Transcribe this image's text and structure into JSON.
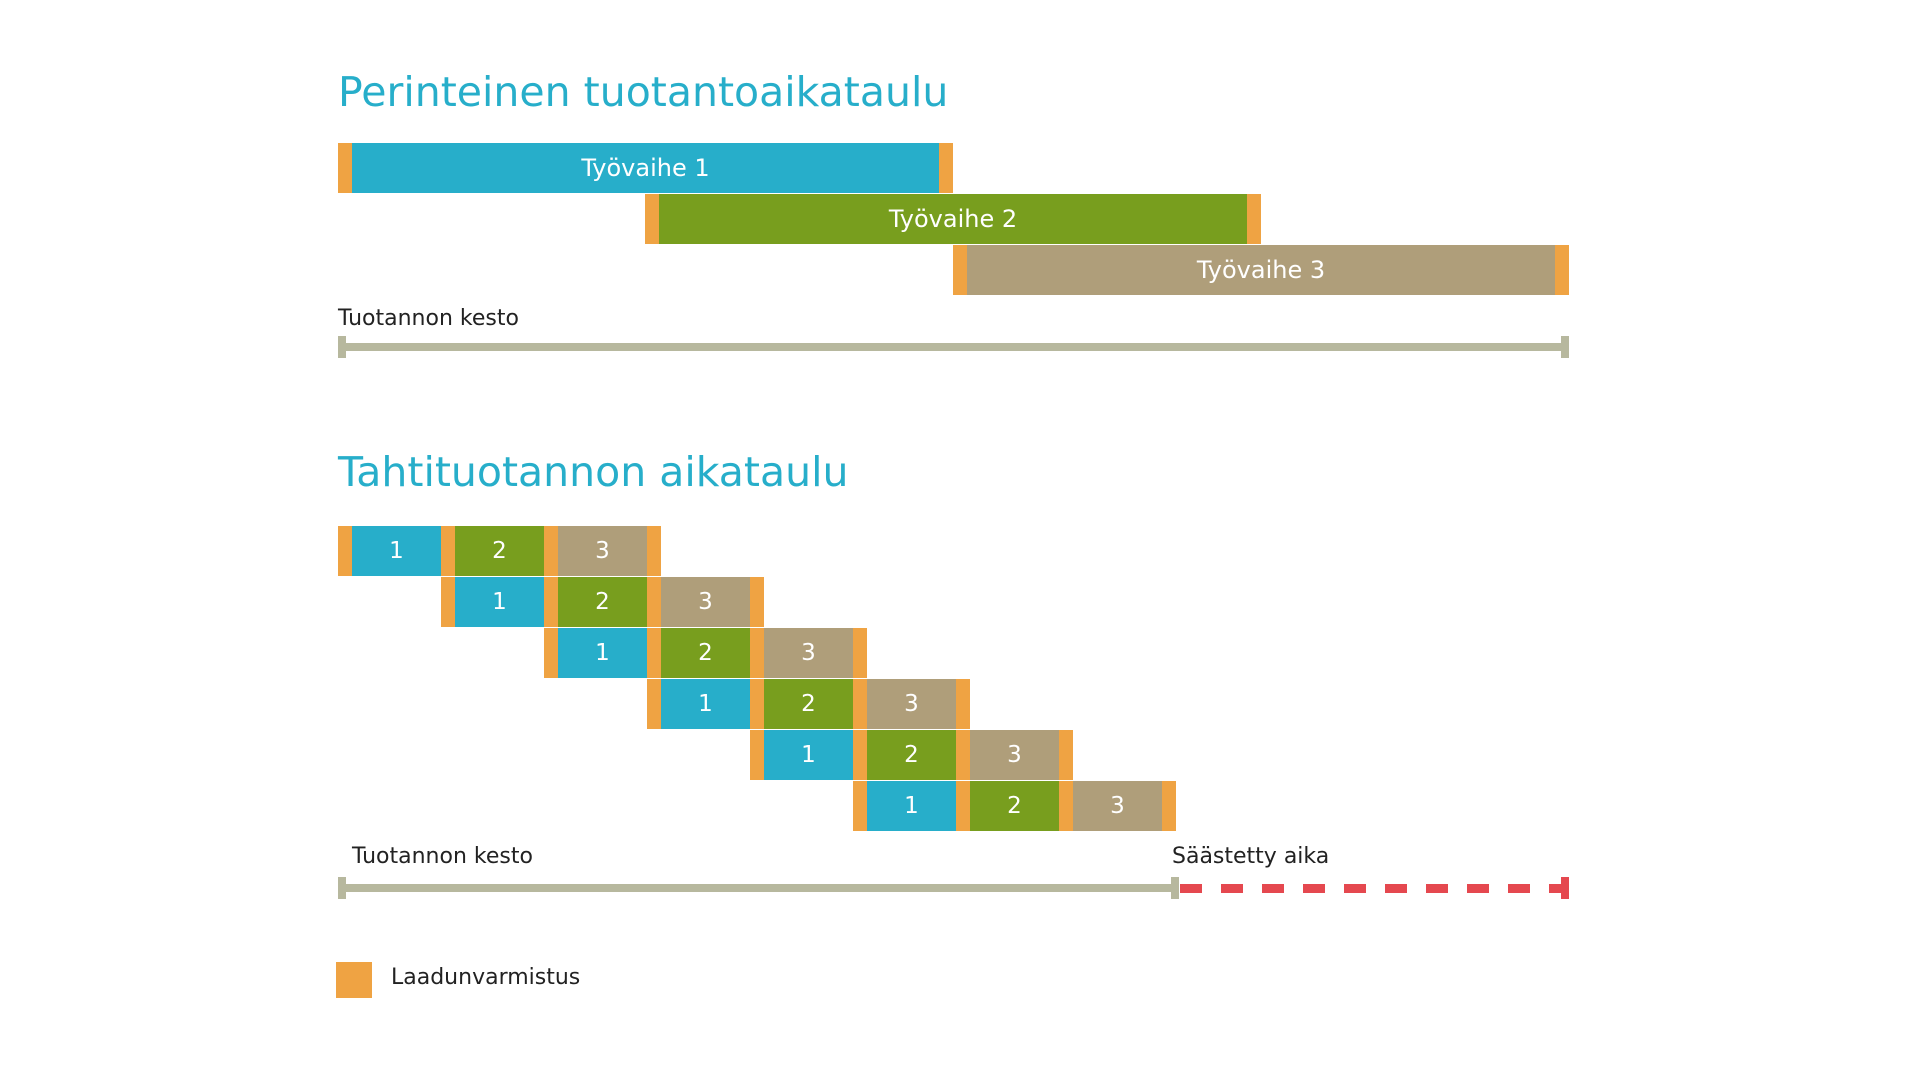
{
  "traditional": {
    "title": "Perinteinen tuotantoaikataulu",
    "phases": [
      {
        "label": "Työvaihe 1",
        "color": "#27AECA"
      },
      {
        "label": "Työvaihe 2",
        "color": "#789E1E"
      },
      {
        "label": "Työvaihe 3",
        "color": "#AF9E7A"
      }
    ],
    "duration_label": "Tuotannon kesto"
  },
  "takt": {
    "title": "Tahtituotannon aikataulu",
    "rows": 6,
    "cell_labels": [
      "1",
      "2",
      "3"
    ],
    "duration_label": "Tuotannon kesto",
    "saved_label": "Säästetty aika"
  },
  "legend": {
    "label": "Laadunvarmistus",
    "color": "#EFA343"
  },
  "colors": {
    "phase1": "#27AECA",
    "phase2": "#789E1E",
    "phase3": "#AF9E7A",
    "quality_assurance": "#EFA343",
    "timeline": "#B7B89E",
    "saved_time": "#E5484F",
    "title": "#27AECA"
  }
}
